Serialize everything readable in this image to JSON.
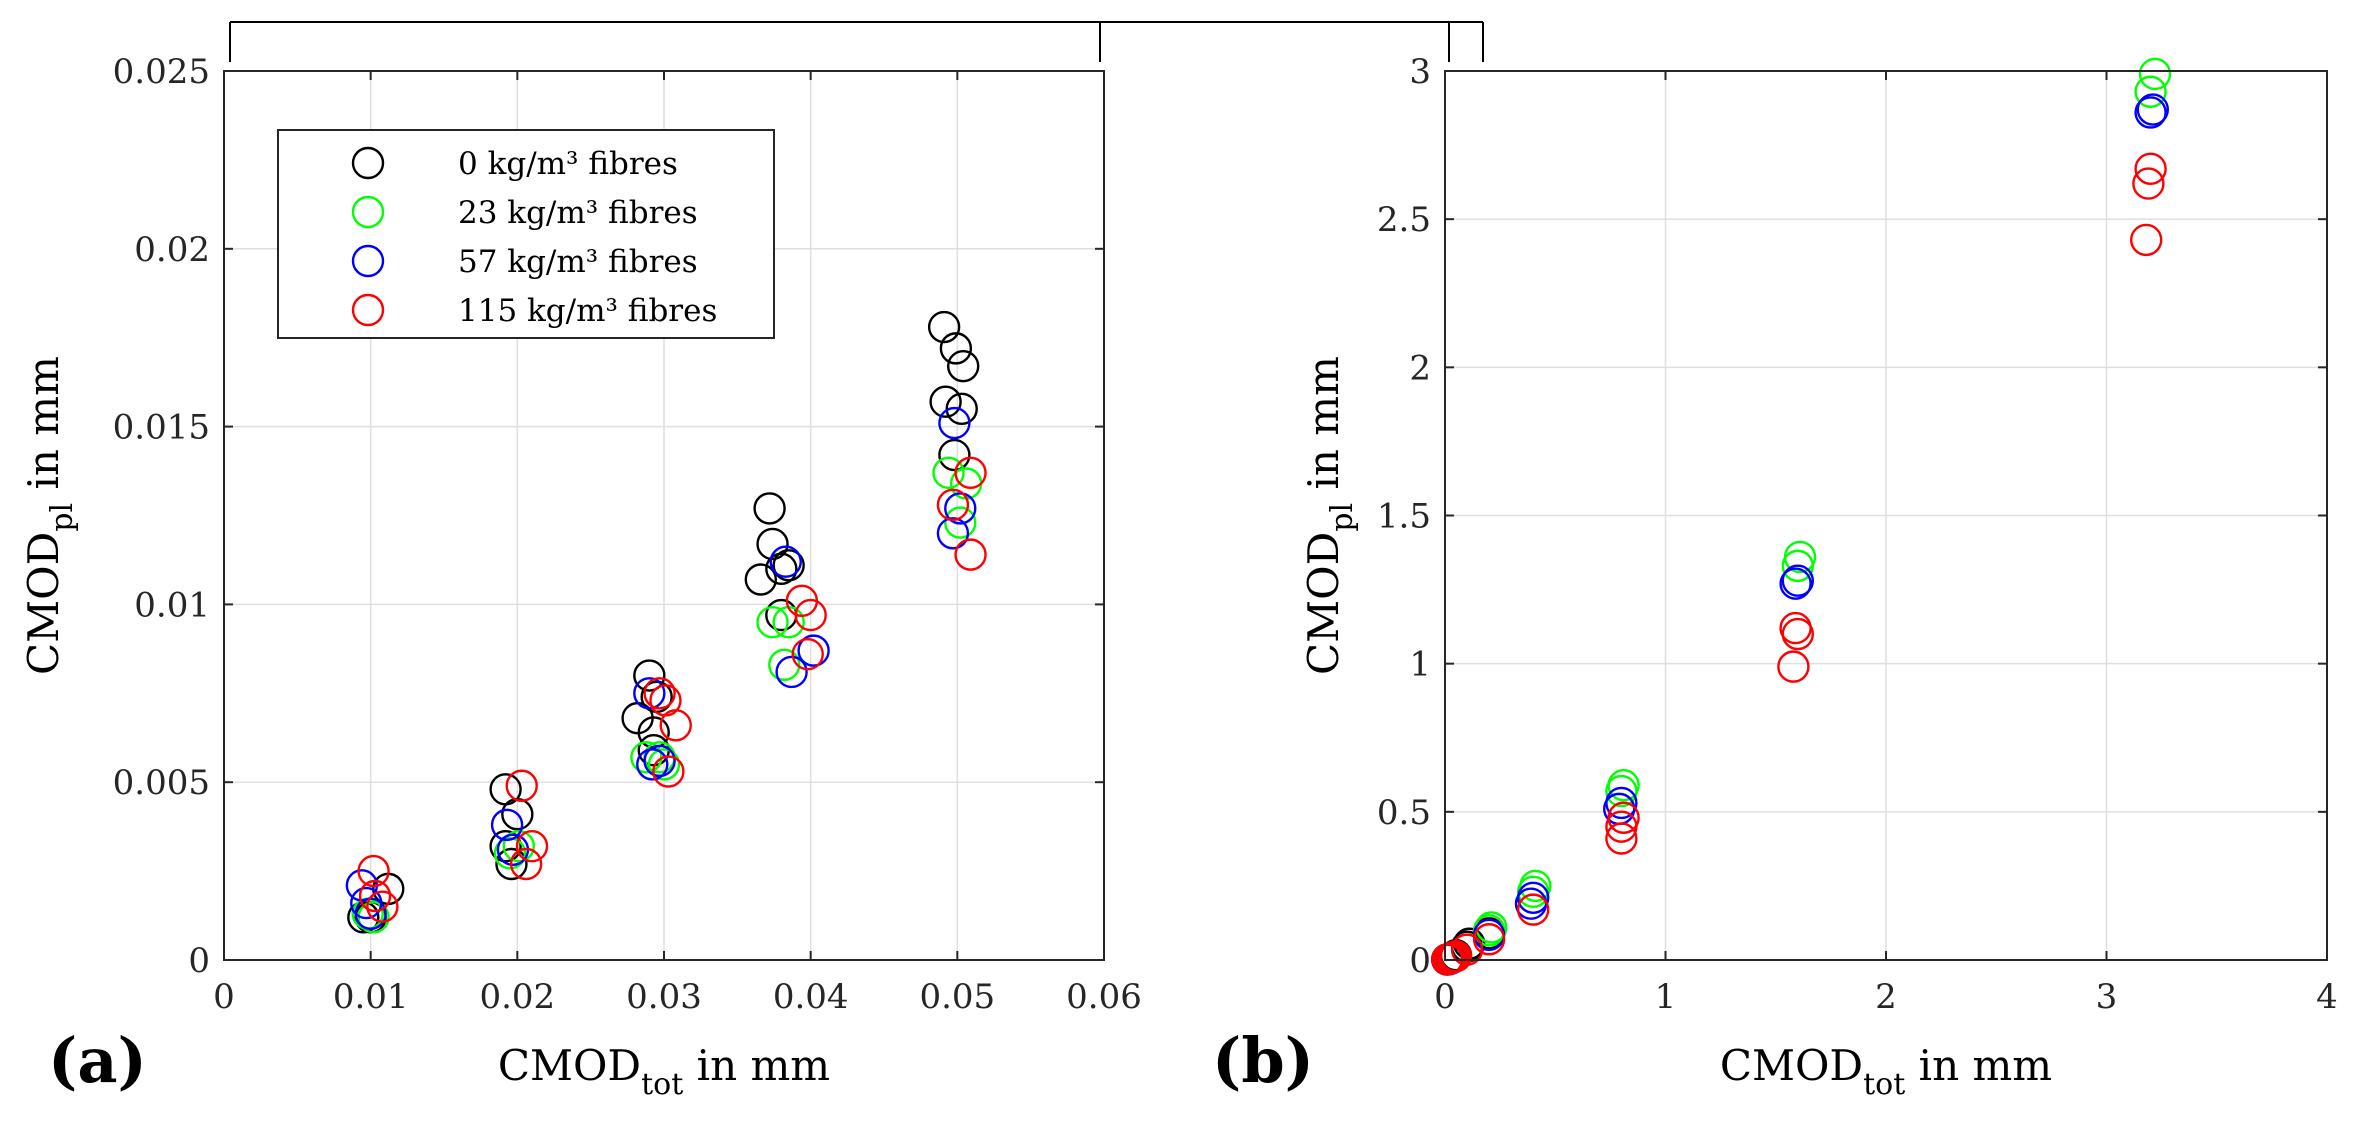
{
  "figure": {
    "panel_a_label": "(a)",
    "panel_b_label": "(b)"
  },
  "chart_data": [
    {
      "type": "scatter",
      "panel": "(a)",
      "xlabel": "CMOD",
      "xlabel_sub": "tot",
      "xlabel_suffix": " in mm",
      "ylabel": "CMOD",
      "ylabel_sub": "pl",
      "ylabel_suffix": " in mm",
      "xlim": [
        0,
        0.06
      ],
      "ylim": [
        0,
        0.025
      ],
      "xticks": [
        0,
        0.01,
        0.02,
        0.03,
        0.04,
        0.05,
        0.06
      ],
      "xtick_labels": [
        "0",
        "0.01",
        "0.02",
        "0.03",
        "0.04",
        "0.05",
        "0.06"
      ],
      "yticks": [
        0,
        0.005,
        0.01,
        0.015,
        0.02,
        0.025
      ],
      "ytick_labels": [
        "0",
        "0.005",
        "0.01",
        "0.015",
        "0.02",
        "0.025"
      ],
      "grid": true,
      "legend": {
        "placement": "top-left",
        "entries": [
          "0 kg/m³ fibres",
          "23 kg/m³ fibres",
          "57 kg/m³ fibres",
          "115 kg/m³ fibres"
        ]
      },
      "series": [
        {
          "name": "0 kg/m³ fibres",
          "color": "#000000",
          "points": [
            [
              0.0095,
              0.0012
            ],
            [
              0.01,
              0.0012
            ],
            [
              0.0112,
              0.002
            ],
            [
              0.0192,
              0.0048
            ],
            [
              0.0192,
              0.0032
            ],
            [
              0.0196,
              0.0027
            ],
            [
              0.02,
              0.0041
            ],
            [
              0.0282,
              0.0068
            ],
            [
              0.029,
              0.008
            ],
            [
              0.0293,
              0.0059
            ],
            [
              0.0293,
              0.0064
            ],
            [
              0.0295,
              0.0074
            ],
            [
              0.0366,
              0.0107
            ],
            [
              0.0372,
              0.0127
            ],
            [
              0.0374,
              0.0117
            ],
            [
              0.038,
              0.0097
            ],
            [
              0.038,
              0.011
            ],
            [
              0.0385,
              0.0111
            ],
            [
              0.0491,
              0.0178
            ],
            [
              0.0492,
              0.0157
            ],
            [
              0.0498,
              0.0142
            ],
            [
              0.0499,
              0.0172
            ],
            [
              0.0503,
              0.0155
            ],
            [
              0.0504,
              0.0167
            ]
          ]
        },
        {
          "name": "23 kg/m³ fibres",
          "color": "#00ff00",
          "points": [
            [
              0.0098,
              0.0013
            ],
            [
              0.0102,
              0.0012
            ],
            [
              0.0195,
              0.003
            ],
            [
              0.0201,
              0.0032
            ],
            [
              0.0288,
              0.0057
            ],
            [
              0.0297,
              0.0057
            ],
            [
              0.03,
              0.0055
            ],
            [
              0.0374,
              0.0095
            ],
            [
              0.0382,
              0.0083
            ],
            [
              0.0385,
              0.0095
            ],
            [
              0.0494,
              0.0137
            ],
            [
              0.0502,
              0.0123
            ],
            [
              0.0506,
              0.0134
            ]
          ]
        },
        {
          "name": "57 kg/m³ fibres",
          "color": "#0000ff",
          "points": [
            [
              0.0094,
              0.0021
            ],
            [
              0.0097,
              0.0016
            ],
            [
              0.01,
              0.0013
            ],
            [
              0.0193,
              0.0038
            ],
            [
              0.0197,
              0.0031
            ],
            [
              0.029,
              0.0075
            ],
            [
              0.0292,
              0.0055
            ],
            [
              0.0297,
              0.0056
            ],
            [
              0.0383,
              0.0112
            ],
            [
              0.0387,
              0.0081
            ],
            [
              0.0402,
              0.0087
            ],
            [
              0.0497,
              0.012
            ],
            [
              0.0498,
              0.0151
            ],
            [
              0.0502,
              0.0127
            ]
          ]
        },
        {
          "name": "115 kg/m³ fibres",
          "color": "#ff0000",
          "points": [
            [
              0.0102,
              0.0025
            ],
            [
              0.0103,
              0.0018
            ],
            [
              0.0108,
              0.0015
            ],
            [
              0.0203,
              0.0049
            ],
            [
              0.0206,
              0.0027
            ],
            [
              0.021,
              0.0032
            ],
            [
              0.0297,
              0.0075
            ],
            [
              0.0301,
              0.0073
            ],
            [
              0.0303,
              0.0053
            ],
            [
              0.0308,
              0.0066
            ],
            [
              0.0394,
              0.0101
            ],
            [
              0.0398,
              0.0086
            ],
            [
              0.04,
              0.0097
            ],
            [
              0.0497,
              0.0128
            ],
            [
              0.0509,
              0.0137
            ],
            [
              0.0509,
              0.0114
            ]
          ]
        }
      ]
    },
    {
      "type": "scatter",
      "panel": "(b)",
      "xlabel": "CMOD",
      "xlabel_sub": "tot",
      "xlabel_suffix": " in mm",
      "ylabel": "CMOD",
      "ylabel_sub": "pl",
      "ylabel_suffix": " in mm",
      "xlim": [
        0,
        4
      ],
      "ylim": [
        0,
        3
      ],
      "xticks": [
        0,
        1,
        2,
        3,
        4
      ],
      "xtick_labels": [
        "0",
        "1",
        "2",
        "3",
        "4"
      ],
      "yticks": [
        0,
        0.5,
        1,
        1.5,
        2,
        2.5,
        3
      ],
      "ytick_labels": [
        "0",
        "0.5",
        "1",
        "1.5",
        "2",
        "2.5",
        "3"
      ],
      "grid": true,
      "series": [
        {
          "name": "0 kg/m³ fibres",
          "color": "#000000",
          "points": [
            [
              0.01,
              0.0015
            ],
            [
              0.02,
              0.003
            ],
            [
              0.03,
              0.007
            ],
            [
              0.04,
              0.011
            ],
            [
              0.05,
              0.016
            ],
            [
              0.1,
              0.045
            ],
            [
              0.11,
              0.055
            ],
            [
              0.2,
              0.09
            ]
          ]
        },
        {
          "name": "23 kg/m³ fibres",
          "color": "#00ff00",
          "points": [
            [
              0.2,
              0.1
            ],
            [
              0.21,
              0.11
            ],
            [
              0.4,
              0.23
            ],
            [
              0.41,
              0.25
            ],
            [
              0.8,
              0.57
            ],
            [
              0.81,
              0.59
            ],
            [
              1.6,
              1.33
            ],
            [
              1.61,
              1.36
            ],
            [
              3.2,
              2.93
            ],
            [
              3.22,
              2.99
            ]
          ]
        },
        {
          "name": "57 kg/m³ fibres",
          "color": "#0000ff",
          "points": [
            [
              0.01,
              0.0017
            ],
            [
              0.02,
              0.0033
            ],
            [
              0.03,
              0.006
            ],
            [
              0.2,
              0.085
            ],
            [
              0.39,
              0.19
            ],
            [
              0.4,
              0.21
            ],
            [
              0.79,
              0.51
            ],
            [
              0.8,
              0.53
            ],
            [
              1.59,
              1.27
            ],
            [
              1.6,
              1.28
            ],
            [
              3.2,
              2.86
            ],
            [
              3.21,
              2.87
            ]
          ]
        },
        {
          "name": "115 kg/m³ fibres",
          "color": "#ff0000",
          "points": [
            [
              0.01,
              0.002
            ],
            [
              0.02,
              0.0035
            ],
            [
              0.03,
              0.007
            ],
            [
              0.04,
              0.01
            ],
            [
              0.05,
              0.013
            ],
            [
              0.1,
              0.035
            ],
            [
              0.2,
              0.07
            ],
            [
              0.4,
              0.17
            ],
            [
              0.8,
              0.41
            ],
            [
              0.8,
              0.45
            ],
            [
              0.81,
              0.48
            ],
            [
              1.58,
              0.99
            ],
            [
              1.59,
              1.12
            ],
            [
              1.6,
              1.1
            ],
            [
              3.18,
              2.43
            ],
            [
              3.19,
              2.62
            ],
            [
              3.2,
              2.67
            ]
          ]
        }
      ]
    }
  ]
}
